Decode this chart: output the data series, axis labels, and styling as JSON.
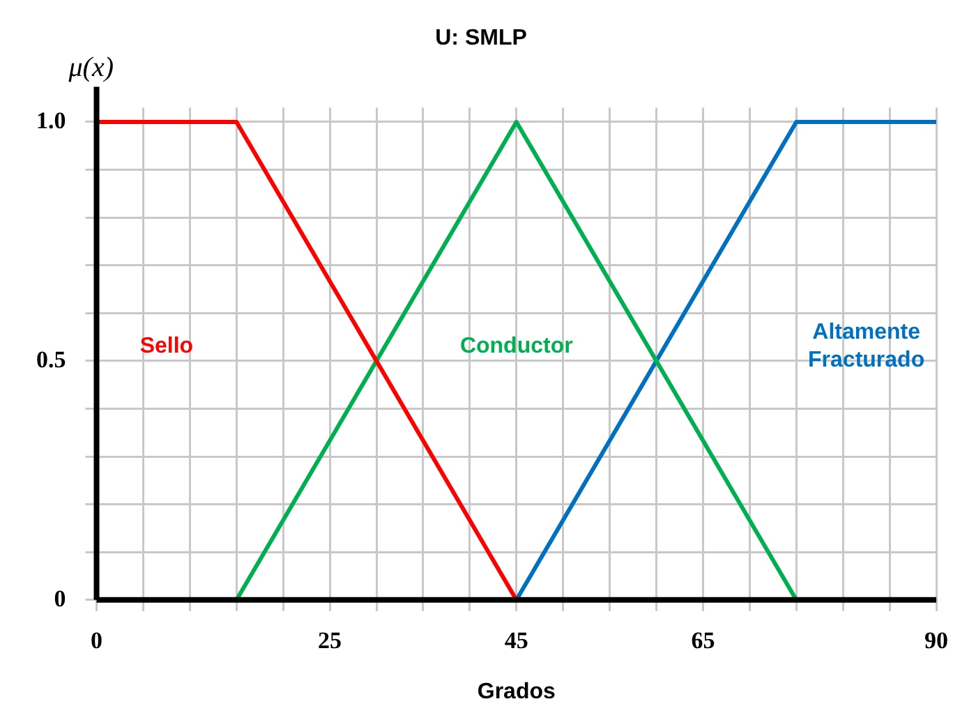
{
  "chart_data": {
    "type": "line",
    "title": "U: SMLP",
    "xlabel": "Grados",
    "ylabel": "μ(x)",
    "xlim": [
      0,
      90
    ],
    "ylim": [
      0,
      1.03
    ],
    "xticks": [
      0,
      {
        "value": 5,
        "label": null
      },
      {
        "value": 10,
        "label": null
      },
      {
        "value": 15,
        "label": null
      },
      {
        "value": 20,
        "label": null
      },
      25,
      {
        "value": 30,
        "label": null
      },
      {
        "value": 35,
        "label": null
      },
      {
        "value": 40,
        "label": null
      },
      45,
      {
        "value": 50,
        "label": null
      },
      {
        "value": 55,
        "label": null
      },
      {
        "value": 60,
        "label": null
      },
      65,
      {
        "value": 70,
        "label": null
      },
      {
        "value": 75,
        "label": null
      },
      {
        "value": 80,
        "label": null
      },
      {
        "value": 85,
        "label": null
      },
      90
    ],
    "yticks": [
      {
        "value": 0,
        "label": "0"
      },
      {
        "value": 0.1,
        "label": null
      },
      {
        "value": 0.2,
        "label": null
      },
      {
        "value": 0.3,
        "label": null
      },
      {
        "value": 0.4,
        "label": null
      },
      {
        "value": 0.5,
        "label": "0.5"
      },
      {
        "value": 0.6,
        "label": null
      },
      {
        "value": 0.7,
        "label": null
      },
      {
        "value": 0.8,
        "label": null
      },
      {
        "value": 0.9,
        "label": null
      },
      {
        "value": 1,
        "label": "1.0"
      }
    ],
    "grid": true,
    "legend": false,
    "marker": "none",
    "line_style": "solid",
    "series": [
      {
        "name": "Sello",
        "color": "#ff0000",
        "x": [
          0,
          15,
          45
        ],
        "values": [
          1,
          1,
          0
        ]
      },
      {
        "name": "Conductor",
        "color": "#00b050",
        "x": [
          15,
          45,
          75
        ],
        "values": [
          0,
          1,
          0
        ]
      },
      {
        "name": "Altamente Fracturado",
        "color": "#0070c0",
        "x": [
          45,
          75,
          90
        ],
        "values": [
          0,
          1,
          1
        ]
      }
    ]
  }
}
